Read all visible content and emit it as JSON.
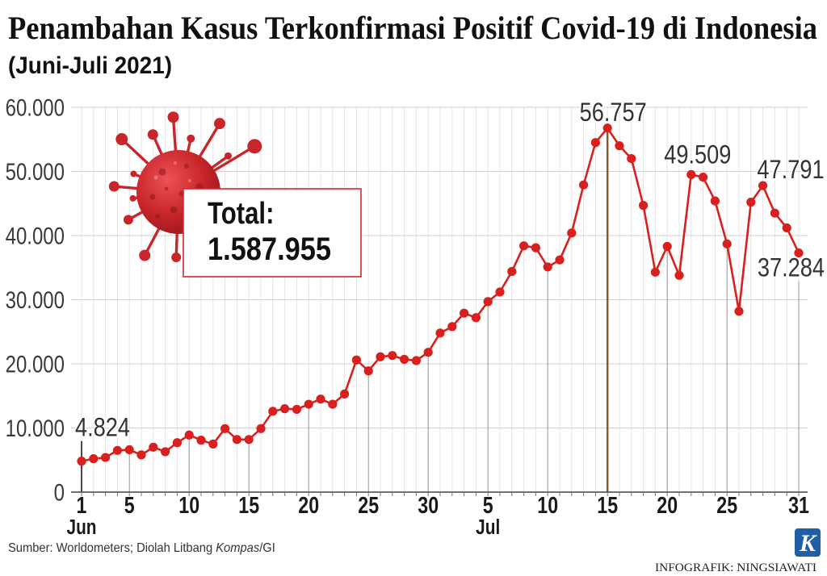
{
  "chart_data": {
    "type": "line",
    "title": "Penambahan Kasus Terkonfirmasi Positif Covid-19 di Indonesia",
    "subtitle": "(Juni-Juli 2021)",
    "x": [
      "2021-06-01",
      "2021-06-02",
      "2021-06-03",
      "2021-06-04",
      "2021-06-05",
      "2021-06-06",
      "2021-06-07",
      "2021-06-08",
      "2021-06-09",
      "2021-06-10",
      "2021-06-11",
      "2021-06-12",
      "2021-06-13",
      "2021-06-14",
      "2021-06-15",
      "2021-06-16",
      "2021-06-17",
      "2021-06-18",
      "2021-06-19",
      "2021-06-20",
      "2021-06-21",
      "2021-06-22",
      "2021-06-23",
      "2021-06-24",
      "2021-06-25",
      "2021-06-26",
      "2021-06-27",
      "2021-06-28",
      "2021-06-29",
      "2021-06-30",
      "2021-07-01",
      "2021-07-02",
      "2021-07-03",
      "2021-07-04",
      "2021-07-05",
      "2021-07-06",
      "2021-07-07",
      "2021-07-08",
      "2021-07-09",
      "2021-07-10",
      "2021-07-11",
      "2021-07-12",
      "2021-07-13",
      "2021-07-14",
      "2021-07-15",
      "2021-07-16",
      "2021-07-17",
      "2021-07-18",
      "2021-07-19",
      "2021-07-20",
      "2021-07-21",
      "2021-07-22",
      "2021-07-23",
      "2021-07-24",
      "2021-07-25",
      "2021-07-26",
      "2021-07-27",
      "2021-07-28",
      "2021-07-29",
      "2021-07-30",
      "2021-07-31"
    ],
    "values": [
      4824,
      5200,
      5400,
      6500,
      6600,
      5800,
      7000,
      6300,
      7700,
      8900,
      8100,
      7500,
      9900,
      8200,
      8200,
      9900,
      12600,
      13000,
      12900,
      13700,
      14500,
      13700,
      15300,
      20600,
      18900,
      21100,
      21300,
      20700,
      20500,
      21800,
      24800,
      25800,
      27900,
      27200,
      29700,
      31200,
      34400,
      38400,
      38100,
      35100,
      36200,
      40400,
      47900,
      54500,
      56757,
      54000,
      52000,
      44700,
      34300,
      38300,
      33800,
      49509,
      49100,
      45400,
      38700,
      28200,
      45200,
      47791,
      43500,
      41200,
      37284
    ],
    "ylim": [
      0,
      60000
    ],
    "y_ticks": [
      {
        "value": 0,
        "label": "0"
      },
      {
        "value": 10000,
        "label": "10.000"
      },
      {
        "value": 20000,
        "label": "20.000"
      },
      {
        "value": 30000,
        "label": "30.000"
      },
      {
        "value": 40000,
        "label": "40.000"
      },
      {
        "value": 50000,
        "label": "50.000"
      },
      {
        "value": 60000,
        "label": "60.000"
      }
    ],
    "x_ticks": [
      {
        "date": "2021-06-01",
        "label": "1"
      },
      {
        "date": "2021-06-05",
        "label": "5"
      },
      {
        "date": "2021-06-10",
        "label": "10"
      },
      {
        "date": "2021-06-15",
        "label": "15"
      },
      {
        "date": "2021-06-20",
        "label": "20"
      },
      {
        "date": "2021-06-25",
        "label": "25"
      },
      {
        "date": "2021-06-30",
        "label": "30"
      },
      {
        "date": "2021-07-05",
        "label": "5"
      },
      {
        "date": "2021-07-10",
        "label": "10"
      },
      {
        "date": "2021-07-15",
        "label": "15"
      },
      {
        "date": "2021-07-20",
        "label": "20"
      },
      {
        "date": "2021-07-25",
        "label": "25"
      },
      {
        "date": "2021-07-31",
        "label": "31"
      }
    ],
    "month_labels": [
      {
        "date": "2021-06-01",
        "label": "Jun"
      },
      {
        "date": "2021-07-05",
        "label": "Jul"
      }
    ],
    "annotations": [
      {
        "date": "2021-06-01",
        "label": "4.824",
        "position": "above"
      },
      {
        "date": "2021-07-15",
        "label": "56.757",
        "position": "above",
        "highlight": true
      },
      {
        "date": "2021-07-22",
        "label": "49.509",
        "position": "above"
      },
      {
        "date": "2021-07-28",
        "label": "47.791",
        "position": "above"
      },
      {
        "date": "2021-07-31",
        "label": "37.284",
        "position": "below"
      }
    ],
    "grid": true
  },
  "total": {
    "label": "Total:",
    "value": "1.587.955"
  },
  "source": {
    "prefix": "Sumber: Worldometers; Diolah Litbang ",
    "italic": "Kompas",
    "suffix": "/GI"
  },
  "credit": "INFOGRAFIK: NINGSIAWATI",
  "logo": {
    "letter": "K"
  },
  "illustration": {
    "icon": "virus-icon"
  },
  "colors": {
    "series": "#d8201f",
    "highlight": "#8b5a2b",
    "total_border": "#d32a2e",
    "logo": "#1f5fa9",
    "virus": "#c8262b"
  }
}
